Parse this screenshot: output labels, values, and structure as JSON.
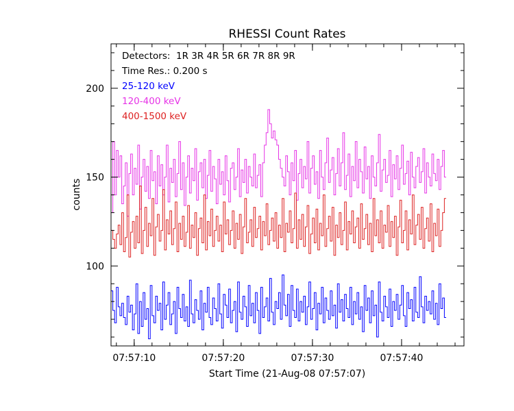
{
  "chart_data": {
    "type": "line",
    "title": "RHESSI Count Rates",
    "xlabel": "Start Time (21-Aug-08 07:57:07)",
    "ylabel": "counts",
    "x_range_seconds_after_start": [
      0.4,
      40.0
    ],
    "ylim": [
      55,
      225
    ],
    "y_ticks": [
      100,
      150,
      200
    ],
    "x_ticks": [
      {
        "t": 3,
        "label": "07:57:10"
      },
      {
        "t": 13,
        "label": "07:57:20"
      },
      {
        "t": 23,
        "label": "07:57:30"
      },
      {
        "t": 33,
        "label": "07:57:40"
      }
    ],
    "grid": false,
    "annotations": [
      "Detectors:  1R 3R 4R 5R 6R 7R 8R 9R",
      "Time Res.: 0.200 s"
    ],
    "time_resolution_s": 0.2,
    "series": [
      {
        "name": "25-120 keV",
        "color": "#0000ff",
        "values": [
          86,
          75,
          68,
          88,
          77,
          72,
          79,
          71,
          67,
          83,
          74,
          78,
          64,
          73,
          90,
          62,
          80,
          66,
          85,
          70,
          76,
          59,
          89,
          72,
          68,
          83,
          75,
          79,
          64,
          91,
          70,
          78,
          85,
          67,
          73,
          80,
          62,
          88,
          76,
          71,
          84,
          69,
          77,
          66,
          92,
          73,
          68,
          81,
          75,
          70,
          86,
          64,
          79,
          74,
          88,
          71,
          67,
          82,
          76,
          69,
          90,
          73,
          65,
          84,
          78,
          71,
          87,
          68,
          75,
          80,
          63,
          91,
          74,
          70,
          83,
          77,
          66,
          89,
          72,
          79,
          68,
          85,
          75,
          62,
          88,
          71,
          77,
          82,
          69,
          93,
          74,
          67,
          80,
          76,
          85,
          70,
          95,
          78,
          72,
          84,
          66,
          89,
          75,
          71,
          87,
          69,
          80,
          74,
          83,
          67,
          77,
          91,
          70,
          76,
          85,
          64,
          79,
          73,
          88,
          68,
          82,
          75,
          70,
          86,
          72,
          78,
          65,
          90,
          74,
          81,
          69,
          84,
          76,
          71,
          88,
          67,
          80,
          73,
          85,
          70,
          77,
          63,
          89,
          75,
          82,
          68,
          86,
          72,
          78,
          60,
          91,
          74,
          69,
          83,
          77,
          71,
          87,
          66,
          80,
          75,
          84,
          70,
          78,
          89,
          72,
          66,
          85,
          76,
          81,
          69,
          88,
          74,
          71,
          94,
          77,
          68,
          83,
          75,
          80,
          73,
          86,
          70,
          79,
          67,
          90,
          76,
          82,
          71
        ]
      },
      {
        "name": "120-400 keV",
        "color": "#e633e6",
        "values": [
          130,
          170,
          140,
          165,
          150,
          162,
          135,
          145,
          158,
          128,
          152,
          163,
          140,
          155,
          146,
          168,
          132,
          150,
          160,
          142,
          156,
          138,
          165,
          148,
          153,
          135,
          162,
          145,
          157,
          140,
          150,
          168,
          136,
          155,
          147,
          160,
          139,
          152,
          170,
          143,
          158,
          134,
          150,
          162,
          141,
          155,
          148,
          166,
          137,
          153,
          158,
          144,
          160,
          138,
          151,
          165,
          142,
          156,
          149,
          135,
          160,
          146,
          153,
          140,
          162,
          148,
          136,
          155,
          158,
          143,
          150,
          166,
          139,
          154,
          147,
          160,
          141,
          156,
          150,
          145,
          163,
          144,
          151,
          157,
          139,
          158,
          168,
          175,
          188,
          180,
          172,
          176,
          171,
          168,
          160,
          155,
          150,
          145,
          162,
          153,
          140,
          158,
          148,
          165,
          137,
          152,
          160,
          144,
          156,
          149,
          170,
          141,
          155,
          162,
          146,
          153,
          138,
          165,
          150,
          143,
          158,
          172,
          147,
          154,
          161,
          140,
          152,
          166,
          145,
          158,
          175,
          143,
          151,
          163,
          139,
          156,
          148,
          170,
          144,
          160,
          153,
          141,
          167,
          149,
          156,
          138,
          162,
          150,
          145,
          158,
          174,
          142,
          154,
          160,
          147,
          151,
          165,
          139,
          157,
          149,
          162,
          143,
          155,
          168,
          146,
          152,
          159,
          140,
          164,
          150,
          144,
          156,
          161,
          147,
          153,
          166,
          141,
          158,
          150,
          145,
          163,
          152,
          148,
          160,
          143,
          156,
          165,
          150
        ]
      },
      {
        "name": "400-1500 keV",
        "color": "#dd2020",
        "values": [
          120,
          115,
          110,
          118,
          123,
          112,
          130,
          108,
          116,
          140,
          105,
          119,
          125,
          110,
          128,
          113,
          145,
          107,
          120,
          133,
          111,
          124,
          117,
          138,
          106,
          122,
          129,
          114,
          120,
          143,
          109,
          126,
          118,
          131,
          112,
          121,
          136,
          108,
          124,
          115,
          128,
          111,
          119,
          134,
          110,
          123,
          116,
          130,
          106,
          121,
          127,
          113,
          140,
          109,
          125,
          117,
          132,
          111,
          120,
          128,
          114,
          123,
          108,
          136,
          118,
          126,
          112,
          120,
          131,
          110,
          124,
          115,
          129,
          107,
          122,
          138,
          113,
          119,
          126,
          111,
          133,
          116,
          121,
          128,
          109,
          125,
          117,
          135,
          112,
          120,
          127,
          114,
          130,
          110,
          123,
          116,
          138,
          108,
          124,
          119,
          131,
          113,
          121,
          141,
          110,
          126,
          115,
          129,
          111,
          122,
          134,
          107,
          118,
          127,
          113,
          132,
          109,
          124,
          117,
          140,
          111,
          121,
          128,
          114,
          133,
          106,
          123,
          116,
          130,
          112,
          120,
          136,
          109,
          125,
          118,
          131,
          113,
          122,
          127,
          110,
          135,
          115,
          121,
          129,
          112,
          124,
          108,
          138,
          117,
          126,
          113,
          131,
          110,
          123,
          119,
          134,
          111,
          125,
          116,
          128,
          106,
          122,
          137,
          113,
          120,
          131,
          109,
          126,
          118,
          140,
          112,
          123,
          129,
          115,
          133,
          110,
          121,
          127,
          114,
          135,
          108,
          124,
          117,
          132,
          111,
          120,
          130,
          138
        ]
      }
    ]
  }
}
